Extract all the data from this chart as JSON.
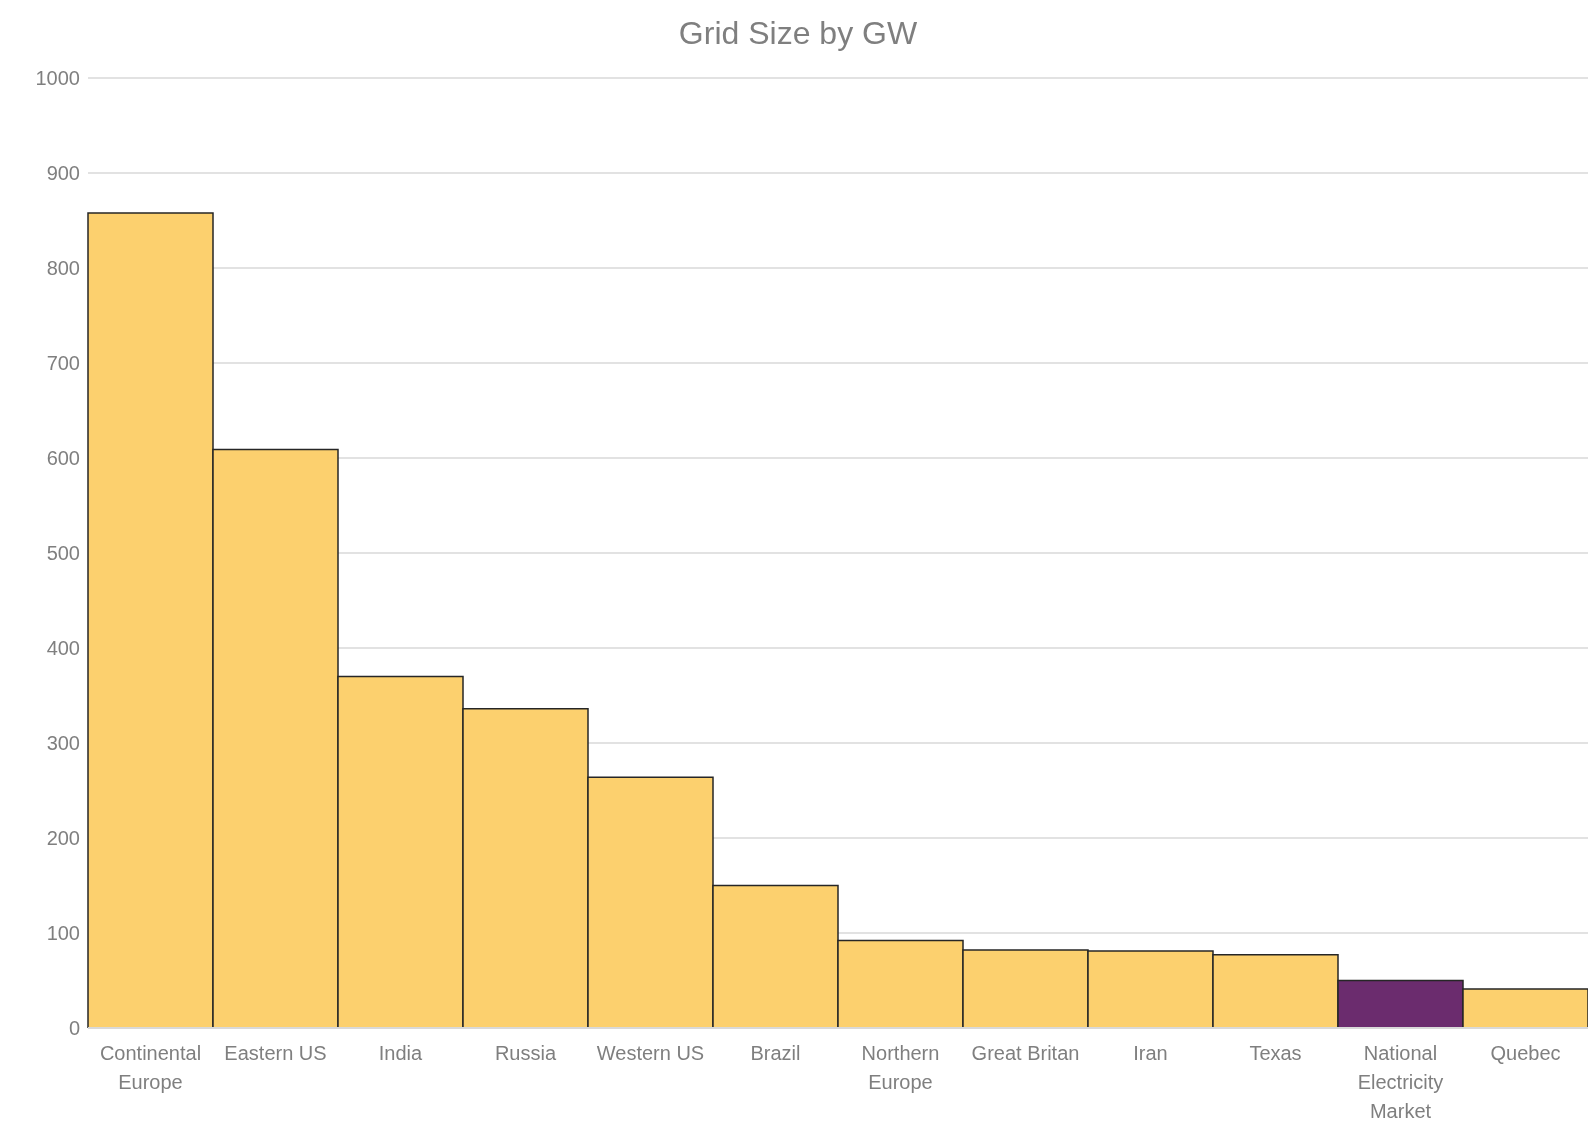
{
  "chart_data": {
    "type": "bar",
    "title": "Grid Size by GW",
    "categories": [
      "Continental Europe",
      "Eastern US",
      "India",
      "Russia",
      "Western US",
      "Brazil",
      "Northern Europe",
      "Great Britan",
      "Iran",
      "Texas",
      "National Electricity Market",
      "Quebec"
    ],
    "values": [
      858,
      609,
      370,
      336,
      264,
      150,
      92,
      82,
      81,
      77,
      50,
      41
    ],
    "colors": [
      "#fcd06e",
      "#fcd06e",
      "#fcd06e",
      "#fcd06e",
      "#fcd06e",
      "#fcd06e",
      "#fcd06e",
      "#fcd06e",
      "#fcd06e",
      "#fcd06e",
      "#6b2c6e",
      "#fcd06e"
    ],
    "ylim": [
      0,
      1000
    ],
    "yticks": [
      0,
      100,
      200,
      300,
      400,
      500,
      600,
      700,
      800,
      900,
      1000
    ],
    "grid": "y"
  }
}
